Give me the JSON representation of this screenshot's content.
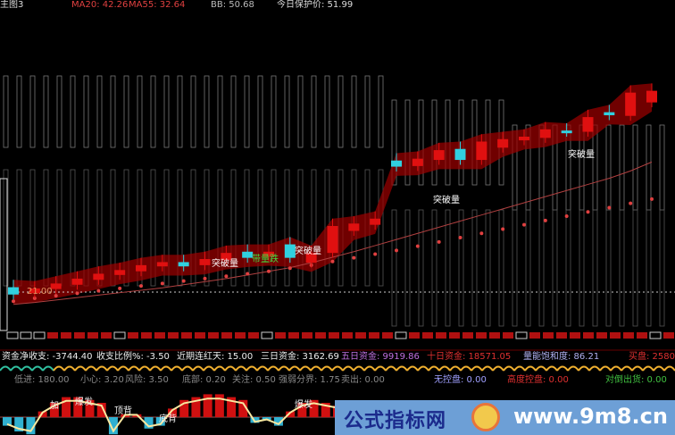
{
  "header": {
    "title": "主图3",
    "ma20": "MA20: 42.26",
    "ma55": "MA55: 32.64",
    "bb": "BB: 50.68",
    "protect_price": "今日保护价: 51.99"
  },
  "chart_labels": {
    "price_line_label": "21.00",
    "breakout_labels": [
      "突破量",
      "突破量",
      "突破量",
      "突破量"
    ],
    "volume_drop_label": "带量跌"
  },
  "fund_line": {
    "net_flow": "资金净收支: -3744.40",
    "ratio": "收支比例%: -3.50",
    "red_days": "近期连红天: 15.00",
    "three_day": "三日资金: 3162.69",
    "five_day": "五日资金: 9919.86",
    "ten_day": "十日资金: 18571.05",
    "saturation": "量能饱和度: 86.21",
    "buy": "买盘: 2580"
  },
  "indicator_line": {
    "low_buy": "低进: 180.00",
    "caution": "小心: 3.20",
    "risk": "风险: 3.50",
    "bottom": "底部: 0.20",
    "watch": "关注: 0.50",
    "strength": "强弱分界: 1.75",
    "sell": "卖出: 0.00",
    "no_control": "无控盘: 0.00",
    "high_control": "高度控盘: 0.00",
    "hedge_out": "对倒出货: 0.00"
  },
  "lower_labels": [
    "加",
    "爆发",
    "顶背",
    "底背",
    "爆发"
  ],
  "watermark": {
    "name": "公式指标网",
    "url": "www.9m8.cn"
  },
  "colors": {
    "up": "#e01010",
    "down": "#30d0e0",
    "ma": "#c85050",
    "text_white": "#e0e0e0",
    "yellow": "#f0d030"
  },
  "chart_data": {
    "type": "candlestick",
    "title": "主图3",
    "reference_line": 21.0,
    "candles": [
      {
        "o": 21.8,
        "c": 20.6
      },
      {
        "o": 20.8,
        "c": 21.6
      },
      {
        "o": 21.5,
        "c": 22.4
      },
      {
        "o": 22.2,
        "c": 23.2
      },
      {
        "o": 23.0,
        "c": 24.0
      },
      {
        "o": 23.8,
        "c": 24.6
      },
      {
        "o": 24.4,
        "c": 25.4
      },
      {
        "o": 25.2,
        "c": 25.9
      },
      {
        "o": 25.9,
        "c": 25.2
      },
      {
        "o": 25.4,
        "c": 26.4
      },
      {
        "o": 26.2,
        "c": 27.4
      },
      {
        "o": 27.6,
        "c": 26.6
      },
      {
        "o": 26.8,
        "c": 27.6
      },
      {
        "o": 28.8,
        "c": 26.6
      },
      {
        "o": 25.8,
        "c": 27.4
      },
      {
        "o": 27.4,
        "c": 31.8
      },
      {
        "o": 31.0,
        "c": 32.2
      },
      {
        "o": 32.0,
        "c": 33.0
      },
      {
        "o": 42.5,
        "c": 41.5
      },
      {
        "o": 41.6,
        "c": 42.8
      },
      {
        "o": 42.6,
        "c": 44.2
      },
      {
        "o": 44.4,
        "c": 42.6
      },
      {
        "o": 42.6,
        "c": 45.6
      },
      {
        "o": 44.6,
        "c": 46.0
      },
      {
        "o": 45.8,
        "c": 46.4
      },
      {
        "o": 46.2,
        "c": 47.6
      },
      {
        "o": 47.4,
        "c": 47.2
      },
      {
        "o": 47.2,
        "c": 49.6
      },
      {
        "o": 50.4,
        "c": 49.9
      },
      {
        "o": 49.8,
        "c": 53.6
      },
      {
        "o": 52.0,
        "c": 53.9
      }
    ],
    "ma_dotted": [
      19.5,
      20.0,
      20.4,
      20.8,
      21.2,
      21.6,
      22.0,
      22.4,
      22.8,
      23.2,
      23.6,
      24.0,
      24.4,
      24.9,
      25.4,
      26.0,
      26.6,
      27.2,
      27.8,
      28.5,
      29.2,
      29.9,
      30.6,
      31.3,
      32.0,
      32.7,
      33.4,
      34.1,
      34.8,
      35.5,
      36.2
    ],
    "ma_line": [
      19.0,
      19.3,
      19.7,
      20.1,
      20.5,
      20.9,
      21.3,
      21.7,
      22.2,
      22.7,
      23.2,
      23.8,
      24.4,
      25.0,
      25.8,
      26.7,
      27.6,
      28.6,
      29.6,
      30.6,
      31.6,
      32.6,
      33.6,
      34.6,
      35.6,
      36.6,
      37.6,
      38.6,
      39.6,
      40.8,
      42.26
    ],
    "lower_values": [
      -3,
      -5,
      -6,
      2,
      5,
      7,
      7,
      6,
      5,
      -6,
      1,
      1,
      -4,
      -3,
      3,
      6,
      7,
      8,
      8,
      7,
      6,
      -2,
      -1,
      -3,
      2,
      5,
      6,
      5,
      4
    ]
  }
}
